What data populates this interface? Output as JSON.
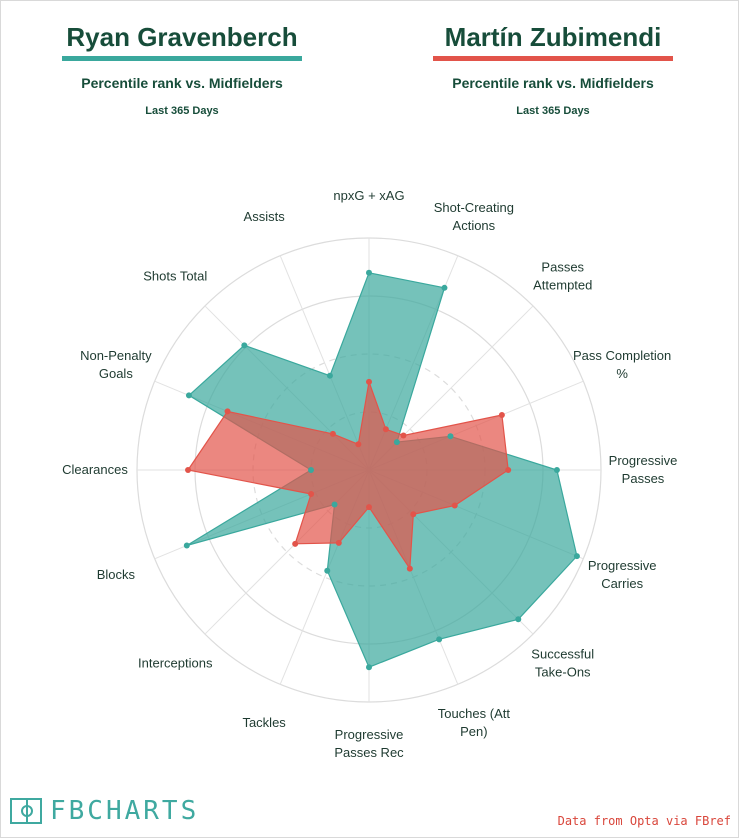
{
  "header": {
    "player1": {
      "name": "Ryan Gravenberch",
      "subtitle": "Percentile rank vs. Midfielders",
      "period": "Last 365 Days",
      "color": "#3aa89d"
    },
    "player2": {
      "name": "Martín Zubimendi",
      "subtitle": "Percentile rank vs. Midfielders",
      "period": "Last 365 Days",
      "color": "#e2544a"
    }
  },
  "footer": {
    "logo_text": "FBCHARTS",
    "source": "Data from Opta via FBref"
  },
  "chart_data": {
    "type": "radar",
    "scale": [
      0,
      100
    ],
    "grid": true,
    "categories": [
      "npxG + xAG",
      "Shot-Creating Actions",
      "Passes Attempted",
      "Pass Completion %",
      "Progressive Passes",
      "Progressive Carries",
      "Successful Take-Ons",
      "Touches (Att Pen)",
      "Progressive Passes Rec",
      "Tackles",
      "Interceptions",
      "Blocks",
      "Clearances",
      "Non-Penalty Goals",
      "Shots Total",
      "Assists"
    ],
    "series": [
      {
        "name": "Ryan Gravenberch",
        "color": "#3aa89d",
        "values": [
          85,
          85,
          17,
          38,
          81,
          97,
          91,
          79,
          85,
          47,
          21,
          85,
          25,
          84,
          76,
          44
        ]
      },
      {
        "name": "Martín Zubimendi",
        "color": "#e2544a",
        "values": [
          38,
          19,
          21,
          62,
          60,
          40,
          27,
          46,
          16,
          34,
          45,
          27,
          78,
          66,
          22,
          12
        ]
      }
    ]
  }
}
